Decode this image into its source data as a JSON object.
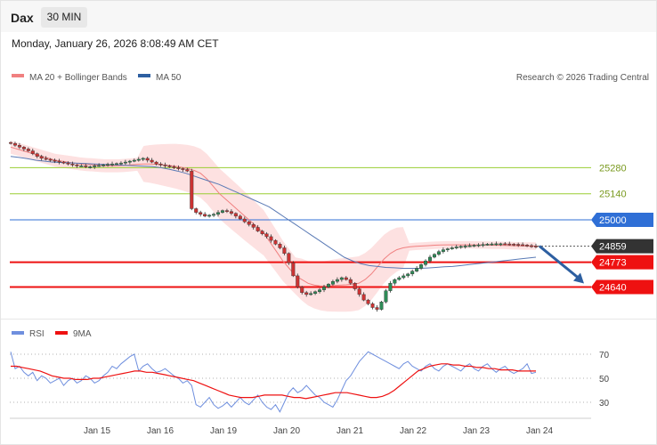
{
  "header": {
    "symbol": "Dax",
    "timeframe": "30 MIN",
    "datetime": "Monday, January 26, 2026 8:08:49 AM CET"
  },
  "legend": {
    "bollinger": "MA 20 + Bollinger Bands",
    "ma50": "MA 50",
    "watermark": "Research © 2026 Trading Central",
    "rsi": "RSI",
    "rsi_ma": "9MA"
  },
  "colors": {
    "candle_up": "#2e8b57",
    "candle_down": "#cc3333",
    "bands_fill": "#fde1e1",
    "ma20": "#f08080",
    "ma50": "#5a7ab5",
    "resistance": "#9acd32",
    "pivot": "#2f6fd6",
    "support": "#ee1111",
    "last": "#333333",
    "rsi": "#6f8fde",
    "rsi_ma": "#ee1111",
    "arrow": "#2d5fa1"
  },
  "chart_data": [
    {
      "type": "candlestick",
      "title": "Dax 30 MIN",
      "ylim": [
        24480,
        25740
      ],
      "x_labels": [
        "Jan 15",
        "Jan 16",
        "Jan 19",
        "Jan 20",
        "Jan 21",
        "Jan 22",
        "Jan 23",
        "Jan 24"
      ],
      "levels": [
        {
          "label": "25280",
          "value": 25280,
          "kind": "resistance"
        },
        {
          "label": "25140",
          "value": 25140,
          "kind": "resistance"
        },
        {
          "label": "25000",
          "value": 25000,
          "kind": "pivot"
        },
        {
          "label": "24859",
          "value": 24859,
          "kind": "last"
        },
        {
          "label": "24773",
          "value": 24773,
          "kind": "support"
        },
        {
          "label": "24640",
          "value": 24640,
          "kind": "support"
        }
      ],
      "forecast": {
        "from": 24859,
        "to": 24640,
        "direction": "down"
      },
      "close_series": [
        25410,
        25400,
        25390,
        25380,
        25370,
        25355,
        25340,
        25330,
        25325,
        25320,
        25315,
        25310,
        25305,
        25300,
        25295,
        25290,
        25290,
        25285,
        25285,
        25290,
        25292,
        25295,
        25298,
        25300,
        25302,
        25305,
        25310,
        25315,
        25320,
        25325,
        25330,
        25320,
        25310,
        25300,
        25295,
        25290,
        25285,
        25280,
        25275,
        25270,
        25262,
        25060,
        25040,
        25030,
        25020,
        25025,
        25030,
        25040,
        25050,
        25045,
        25035,
        25020,
        25005,
        24990,
        24975,
        24960,
        24940,
        24925,
        24910,
        24890,
        24870,
        24850,
        24820,
        24770,
        24700,
        24640,
        24610,
        24600,
        24605,
        24615,
        24625,
        24640,
        24655,
        24670,
        24680,
        24690,
        24680,
        24660,
        24630,
        24600,
        24570,
        24550,
        24530,
        24520,
        24560,
        24620,
        24660,
        24680,
        24690,
        24700,
        24710,
        24725,
        24740,
        24760,
        24780,
        24800,
        24815,
        24830,
        24840,
        24845,
        24850,
        24855,
        24858,
        24860,
        24862,
        24864,
        24866,
        24868,
        24870,
        24871,
        24872,
        24872,
        24871,
        24870,
        24869,
        24867,
        24865,
        24862,
        24860,
        24859
      ],
      "ma20": [
        25390,
        25380,
        25370,
        25360,
        25350,
        25340,
        25330,
        25320,
        25315,
        25310,
        25305,
        25300,
        25297,
        25295,
        25292,
        25290,
        25290,
        25290,
        25292,
        25295,
        25298,
        25300,
        25300,
        25298,
        25295,
        25292,
        25288,
        25282,
        25275,
        25265,
        25250,
        25220,
        25180,
        25140,
        25110,
        25080,
        25050,
        25020,
        24990,
        24960,
        24930,
        24880,
        24830,
        24780,
        24740,
        24700,
        24680,
        24660,
        24650,
        24645,
        24645,
        24648,
        24650,
        24652,
        24655,
        24660,
        24680,
        24710,
        24750,
        24790,
        24820,
        24840,
        24850,
        24855,
        24858,
        24860,
        24862,
        24864,
        24865,
        24866,
        24866,
        24866,
        24866,
        24866,
        24865,
        24865,
        24864,
        24864,
        24863,
        24862,
        24861,
        24860,
        24860,
        24859
      ],
      "ma50": [
        25340,
        25335,
        25328,
        25320,
        25315,
        25310,
        25308,
        25306,
        25304,
        25302,
        25300,
        25298,
        25296,
        25294,
        25292,
        25290,
        25288,
        25286,
        25280,
        25272,
        25262,
        25250,
        25235,
        25220,
        25205,
        25190,
        25170,
        25150,
        25130,
        25110,
        25090,
        25070,
        25040,
        25010,
        24980,
        24950,
        24920,
        24890,
        24860,
        24830,
        24800,
        24780,
        24765,
        24755,
        24750,
        24745,
        24743,
        24740,
        24740,
        24740,
        24742,
        24745,
        24748,
        24750,
        24755,
        24760,
        24765,
        24770,
        24775,
        24780,
        24785,
        24790,
        24795,
        24800
      ]
    },
    {
      "type": "line",
      "title": "RSI",
      "ylim": [
        20,
        80
      ],
      "y_ticks": [
        70,
        50,
        30
      ],
      "series": [
        {
          "name": "RSI",
          "values": [
            72,
            58,
            60,
            55,
            52,
            55,
            48,
            52,
            50,
            46,
            48,
            50,
            44,
            48,
            50,
            46,
            48,
            52,
            50,
            46,
            48,
            52,
            55,
            60,
            58,
            62,
            65,
            68,
            70,
            56,
            60,
            62,
            58,
            55,
            56,
            58,
            55,
            52,
            50,
            46,
            48,
            44,
            28,
            26,
            30,
            34,
            28,
            25,
            27,
            30,
            26,
            30,
            34,
            30,
            28,
            32,
            36,
            30,
            26,
            24,
            28,
            22,
            30,
            38,
            42,
            38,
            40,
            44,
            40,
            36,
            34,
            30,
            28,
            26,
            32,
            40,
            48,
            52,
            58,
            64,
            68,
            72,
            70,
            68,
            66,
            64,
            62,
            60,
            58,
            62,
            64,
            60,
            58,
            56,
            60,
            62,
            58,
            56,
            60,
            62,
            60,
            58,
            56,
            60,
            62,
            58,
            56,
            60,
            62,
            58,
            55,
            58,
            60,
            56,
            54,
            56,
            58,
            62,
            54,
            55
          ]
        },
        {
          "name": "9MA",
          "values": [
            60,
            60,
            59,
            58,
            57,
            56,
            54,
            52,
            51,
            50,
            50,
            49,
            49,
            49,
            50,
            50,
            51,
            52,
            53,
            54,
            55,
            56,
            56,
            55,
            55,
            54,
            53,
            52,
            51,
            50,
            49,
            48,
            46,
            44,
            42,
            40,
            38,
            36,
            35,
            34,
            34,
            34,
            35,
            36,
            36,
            36,
            36,
            35,
            34,
            34,
            33,
            34,
            35,
            36,
            37,
            38,
            38,
            38,
            37,
            36,
            35,
            34,
            34,
            35,
            37,
            40,
            44,
            48,
            52,
            56,
            58,
            60,
            61,
            62,
            62,
            61,
            61,
            60,
            60,
            59,
            59,
            58,
            58,
            57,
            57,
            57,
            56,
            56,
            56,
            56
          ]
        }
      ]
    }
  ]
}
